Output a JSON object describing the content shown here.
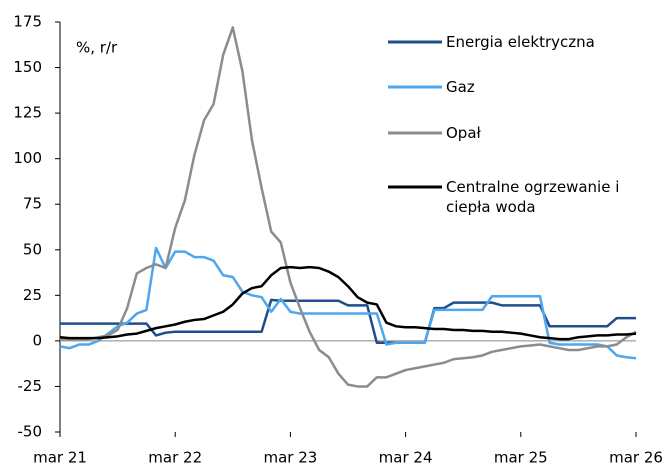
{
  "chart_data": {
    "type": "line",
    "annotation": "%, r/r",
    "categories": [
      "mar 21",
      null,
      null,
      null,
      null,
      null,
      null,
      null,
      null,
      null,
      null,
      null,
      "mar 22",
      null,
      null,
      null,
      null,
      null,
      null,
      null,
      null,
      null,
      null,
      null,
      "mar 23",
      null,
      null,
      null,
      null,
      null,
      null,
      null,
      null,
      null,
      null,
      null,
      "mar 24",
      null,
      null,
      null,
      null,
      null,
      null,
      null,
      null,
      null,
      null,
      null,
      "mar 25",
      null,
      null,
      null,
      null,
      null,
      null,
      null,
      null,
      null,
      null,
      null,
      "mar 26"
    ],
    "series": [
      {
        "name": "Energia elektryczna",
        "color": "#1f4e8c",
        "values": [
          9.5,
          9.5,
          9.5,
          9.5,
          9.5,
          9.5,
          9.5,
          9.5,
          9.5,
          9.5,
          3,
          4.5,
          5,
          5,
          5,
          5,
          5,
          5,
          5,
          5,
          5,
          5,
          22.5,
          22,
          22,
          22,
          22,
          22,
          22,
          22,
          19.5,
          19.5,
          19.5,
          -1,
          -1,
          -1,
          -1,
          -1,
          -1,
          18,
          18,
          21,
          21,
          21,
          21,
          21,
          19.5,
          19.5,
          19.5,
          19.5,
          19.5,
          8,
          8,
          8,
          8,
          8,
          8,
          8,
          12.5,
          12.5,
          12.5
        ]
      },
      {
        "name": "Gaz",
        "color": "#4da6f0",
        "values": [
          -3,
          -4,
          -2,
          -2,
          0,
          4,
          8,
          10,
          15,
          17,
          51,
          40,
          49,
          49,
          46,
          46,
          44,
          36,
          35,
          27,
          25,
          24,
          16,
          23,
          16,
          15,
          15,
          15,
          15,
          15,
          15,
          15,
          15,
          15,
          -2,
          -1,
          -1,
          -1,
          -1,
          17,
          17,
          17,
          17,
          17,
          17,
          24.5,
          24.5,
          24.5,
          24.5,
          24.5,
          24.5,
          -1,
          -2,
          -2,
          -2,
          -2,
          -2,
          -3,
          -8,
          -9,
          -9.5
        ]
      },
      {
        "name": "Opał",
        "color": "#8c8c8c",
        "values": [
          1,
          1,
          1,
          1,
          2,
          3,
          6,
          18,
          37,
          40,
          42,
          40,
          62,
          77,
          102,
          121,
          130,
          157,
          172,
          148,
          110,
          84,
          60,
          54,
          32,
          18,
          5,
          -5,
          -9,
          -18,
          -24,
          -25,
          -25,
          -20,
          -20,
          -18,
          -16,
          -15,
          -14,
          -13,
          -12,
          -10,
          -9.5,
          -9,
          -8,
          -6,
          -5,
          -4,
          -3,
          -2.5,
          -2,
          -3,
          -4,
          -5,
          -5,
          -4,
          -3,
          -3,
          -2,
          2,
          5
        ]
      },
      {
        "name": "Centralne ogrzewanie i ciepła woda",
        "color": "#000000",
        "values": [
          2,
          1.5,
          1.5,
          1.5,
          1.5,
          2,
          2.5,
          3.5,
          4,
          5.5,
          7,
          8,
          9,
          10.5,
          11.5,
          12,
          14,
          16,
          20,
          26,
          29,
          30,
          36,
          40,
          40.5,
          40,
          40.5,
          40,
          38,
          35,
          30,
          24,
          21,
          20,
          10,
          8,
          7.5,
          7.5,
          7,
          6.5,
          6.5,
          6,
          6,
          5.5,
          5.5,
          5,
          5,
          4.5,
          4,
          3,
          2,
          1.5,
          1,
          1,
          2,
          2.5,
          3,
          3,
          3.5,
          3.5,
          4
        ]
      }
    ],
    "ylim": [
      -50,
      175
    ],
    "yticks": [
      -50,
      -25,
      0,
      25,
      50,
      75,
      100,
      125,
      150,
      175
    ],
    "grid": false,
    "legend": "upper right"
  }
}
